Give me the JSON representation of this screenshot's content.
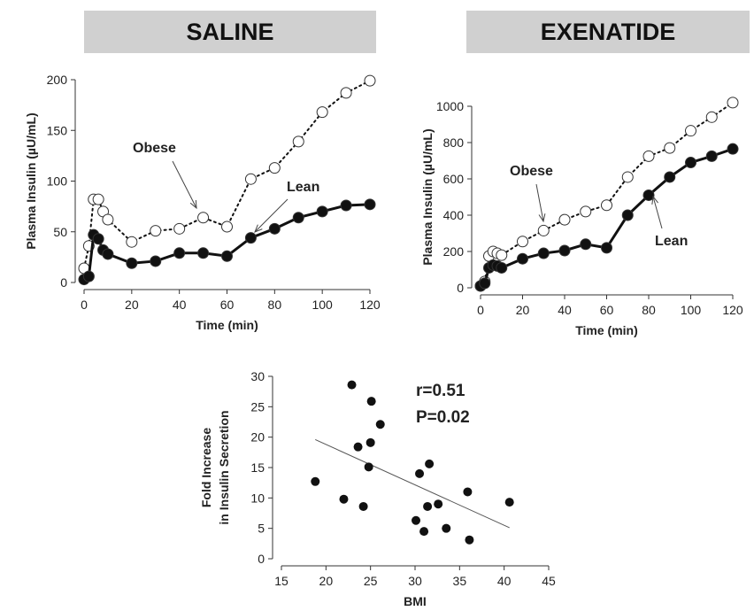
{
  "panels": {
    "saline_title": "SALINE",
    "exenatide_title": "EXENATIDE"
  },
  "chart_data": [
    {
      "type": "line",
      "title": "SALINE",
      "xlabel": "Time (min)",
      "ylabel": "Plasma Insulin (µU/mL)",
      "xlim": [
        0,
        120
      ],
      "ylim": [
        0,
        200
      ],
      "xticks": [
        0,
        20,
        40,
        60,
        80,
        100,
        120
      ],
      "yticks": [
        0,
        50,
        100,
        150,
        200
      ],
      "grid": false,
      "series": [
        {
          "name": "Obese",
          "style": "dotted-open-circle",
          "x": [
            0,
            2,
            4,
            6,
            8,
            10,
            20,
            30,
            40,
            50,
            60,
            70,
            80,
            90,
            100,
            110,
            120
          ],
          "y": [
            14,
            36,
            82,
            82,
            70,
            62,
            40,
            51,
            53,
            64,
            55,
            102,
            113,
            139,
            168,
            187,
            199
          ]
        },
        {
          "name": "Lean",
          "style": "solid-filled-circle",
          "x": [
            0,
            2,
            4,
            6,
            8,
            10,
            20,
            30,
            40,
            50,
            60,
            70,
            80,
            90,
            100,
            110,
            120
          ],
          "y": [
            3,
            6,
            47,
            43,
            32,
            28,
            19,
            21,
            29,
            29,
            26,
            44,
            53,
            64,
            70,
            76,
            77
          ]
        }
      ],
      "annotations": [
        "Obese",
        "Lean"
      ]
    },
    {
      "type": "line",
      "title": "EXENATIDE",
      "xlabel": "Time (min)",
      "ylabel": "Plasma Insulin (µU/mL)",
      "xlim": [
        0,
        120
      ],
      "ylim": [
        0,
        1000
      ],
      "xticks": [
        0,
        20,
        40,
        60,
        80,
        100,
        120
      ],
      "yticks": [
        0,
        200,
        400,
        600,
        800,
        1000
      ],
      "grid": false,
      "series": [
        {
          "name": "Obese",
          "style": "dotted-open-circle",
          "x": [
            0,
            2,
            4,
            6,
            8,
            10,
            20,
            30,
            40,
            50,
            60,
            70,
            80,
            90,
            100,
            110,
            120
          ],
          "y": [
            10,
            35,
            175,
            200,
            190,
            180,
            255,
            315,
            375,
            420,
            455,
            610,
            725,
            770,
            865,
            940,
            1020
          ]
        },
        {
          "name": "Lean",
          "style": "solid-filled-circle",
          "x": [
            0,
            2,
            4,
            6,
            8,
            10,
            20,
            30,
            40,
            50,
            60,
            70,
            80,
            90,
            100,
            110,
            120
          ],
          "y": [
            10,
            25,
            110,
            125,
            120,
            110,
            160,
            190,
            205,
            240,
            220,
            400,
            510,
            610,
            690,
            725,
            765
          ]
        }
      ],
      "annotations": [
        "Obese",
        "Lean"
      ]
    },
    {
      "type": "scatter",
      "xlabel": "BMI",
      "ylabel_line1": "Fold Increase",
      "ylabel_line2": "in Insulin Secretion",
      "xlim": [
        15,
        45
      ],
      "ylim": [
        0,
        30
      ],
      "xticks": [
        15,
        20,
        25,
        30,
        35,
        40,
        45
      ],
      "yticks": [
        0,
        5,
        10,
        15,
        20,
        25,
        30
      ],
      "grid": false,
      "annotation_r": "r=0.51",
      "annotation_p": "P=0.02",
      "points": {
        "x": [
          18.8,
          22,
          22.9,
          23.6,
          24.2,
          24.8,
          25,
          25.1,
          26.1,
          30.1,
          30.5,
          31,
          31.4,
          31.6,
          32.6,
          33.5,
          35.9,
          36.1,
          40.6
        ],
        "y": [
          12.7,
          9.8,
          28.6,
          18.4,
          8.6,
          15.1,
          19.1,
          25.9,
          22.1,
          6.3,
          14,
          4.5,
          8.6,
          15.6,
          9,
          5,
          11,
          3.1,
          9.3
        ]
      },
      "trendline": {
        "x": [
          18.8,
          40.6
        ],
        "y": [
          19.6,
          5.1
        ]
      }
    }
  ]
}
